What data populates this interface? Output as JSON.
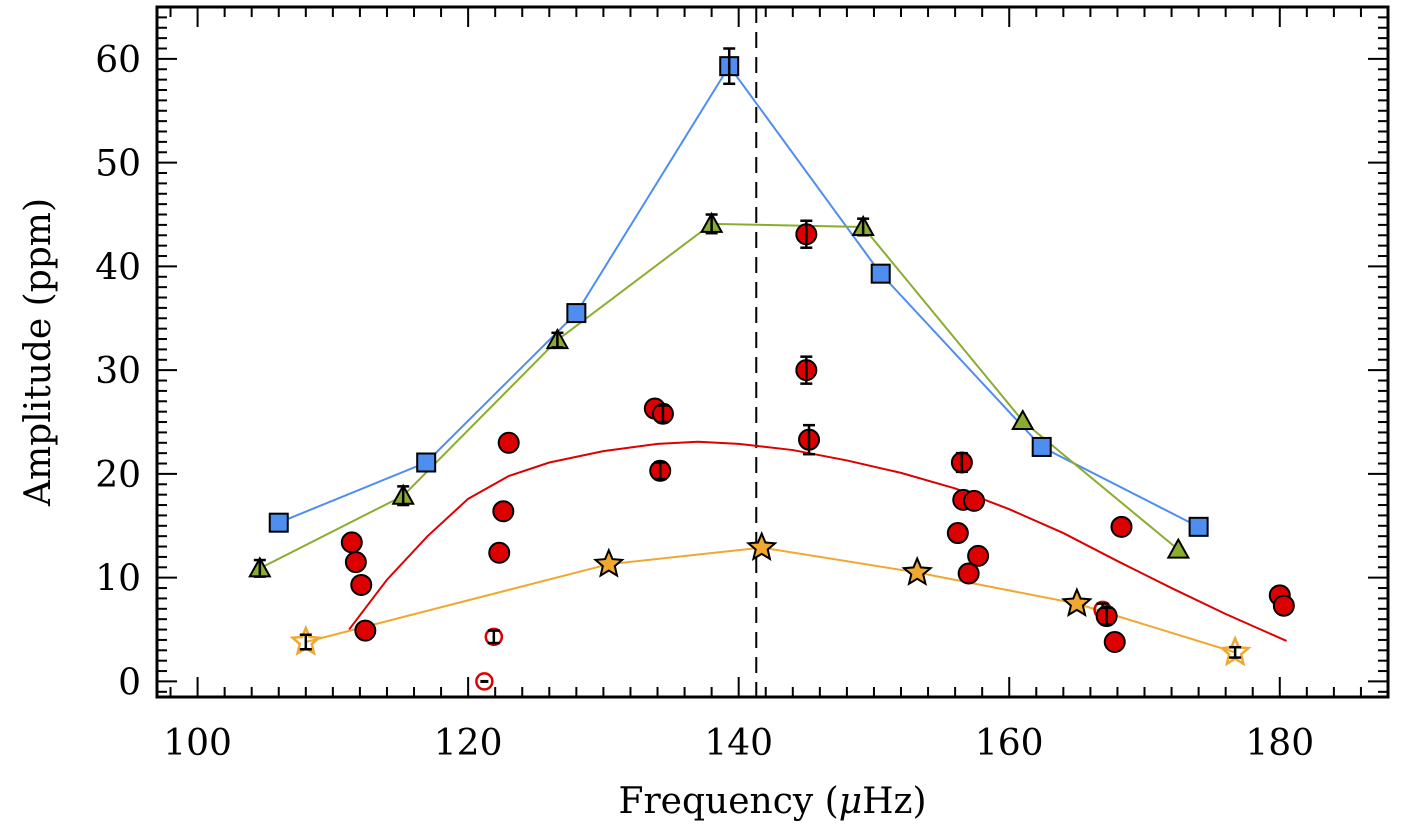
{
  "chart_data": {
    "type": "scatter",
    "xlabel_parts": [
      "Frequency (",
      "μ",
      "Hz)"
    ],
    "ylabel": "Amplitude (ppm)",
    "xlim": [
      97,
      188
    ],
    "ylim": [
      -1.5,
      65
    ],
    "xticks": [
      100,
      120,
      140,
      160,
      180
    ],
    "xtick_labels": [
      "100",
      "120",
      "140",
      "160",
      "180"
    ],
    "yticks": [
      0,
      10,
      20,
      30,
      40,
      50,
      60
    ],
    "ytick_labels": [
      "0",
      "10",
      "20",
      "30",
      "40",
      "50",
      "60"
    ],
    "vline_x": 141.3,
    "colors": {
      "blue": "#4d8ef0",
      "green": "#8aad2e",
      "red": "#dd0000",
      "orange": "#f0a830"
    },
    "series": [
      {
        "marker": "square",
        "color": "#4d8ef0",
        "line": true,
        "points": [
          {
            "x": 106.0,
            "y": 15.3
          },
          {
            "x": 116.9,
            "y": 21.1
          },
          {
            "x": 128.0,
            "y": 35.5
          },
          {
            "x": 139.3,
            "y": 59.3,
            "err": 1.7
          },
          {
            "x": 150.5,
            "y": 39.3
          },
          {
            "x": 162.4,
            "y": 22.6
          },
          {
            "x": 174.0,
            "y": 14.9
          }
        ]
      },
      {
        "marker": "triangle",
        "color": "#8aad2e",
        "line": true,
        "points": [
          {
            "x": 104.6,
            "y": 10.9,
            "err": 0.8
          },
          {
            "x": 115.2,
            "y": 17.9,
            "err": 0.9
          },
          {
            "x": 126.6,
            "y": 32.9,
            "err": 0.7
          },
          {
            "x": 138.0,
            "y": 44.1,
            "err": 0.9
          },
          {
            "x": 149.2,
            "y": 43.8,
            "err": 0.8
          },
          {
            "x": 161.0,
            "y": 25.1
          },
          {
            "x": 172.5,
            "y": 12.7
          }
        ]
      },
      {
        "marker": "star",
        "color": "#f0a830",
        "line": true,
        "points": [
          {
            "x": 108.0,
            "y": 3.8,
            "open": true,
            "err": 0.7
          },
          {
            "x": 130.4,
            "y": 11.3
          },
          {
            "x": 141.7,
            "y": 12.9
          },
          {
            "x": 153.2,
            "y": 10.5
          },
          {
            "x": 165.0,
            "y": 7.5
          },
          {
            "x": 176.7,
            "y": 2.8,
            "open": true,
            "err": 0.5
          }
        ]
      },
      {
        "marker": "circle",
        "color": "#dd0000",
        "line": false,
        "points": [
          {
            "x": 111.4,
            "y": 13.4
          },
          {
            "x": 111.7,
            "y": 11.5
          },
          {
            "x": 112.1,
            "y": 9.3
          },
          {
            "x": 112.4,
            "y": 4.9
          },
          {
            "x": 121.9,
            "y": 4.3,
            "open": true,
            "err": 0.6
          },
          {
            "x": 121.2,
            "y": 0.0,
            "open": true
          },
          {
            "x": 122.3,
            "y": 12.4
          },
          {
            "x": 122.6,
            "y": 16.4
          },
          {
            "x": 123.0,
            "y": 23.0
          },
          {
            "x": 133.8,
            "y": 26.3
          },
          {
            "x": 134.2,
            "y": 20.3,
            "err": 0.8
          },
          {
            "x": 134.4,
            "y": 25.8,
            "err": 0.8
          },
          {
            "x": 145.0,
            "y": 43.1,
            "err": 1.3
          },
          {
            "x": 145.0,
            "y": 30.0,
            "err": 1.3
          },
          {
            "x": 145.2,
            "y": 23.3,
            "err": 1.4
          },
          {
            "x": 156.2,
            "y": 14.3
          },
          {
            "x": 156.5,
            "y": 21.1,
            "err": 0.9
          },
          {
            "x": 156.6,
            "y": 17.5
          },
          {
            "x": 157.0,
            "y": 10.4
          },
          {
            "x": 157.4,
            "y": 17.4
          },
          {
            "x": 157.7,
            "y": 12.1
          },
          {
            "x": 166.9,
            "y": 6.9,
            "open": true,
            "err": 0.6
          },
          {
            "x": 167.2,
            "y": 6.3,
            "err": 0.8
          },
          {
            "x": 167.8,
            "y": 3.8
          },
          {
            "x": 168.3,
            "y": 14.9
          },
          {
            "x": 180.0,
            "y": 8.3
          },
          {
            "x": 180.3,
            "y": 7.3
          }
        ]
      }
    ],
    "fit_curve": {
      "color": "#dd0000",
      "points": [
        [
          111.2,
          5.0
        ],
        [
          114,
          9.8
        ],
        [
          117,
          14.0
        ],
        [
          120,
          17.6
        ],
        [
          123,
          19.8
        ],
        [
          126,
          21.1
        ],
        [
          130,
          22.2
        ],
        [
          134,
          22.9
        ],
        [
          137,
          23.1
        ],
        [
          140,
          22.9
        ],
        [
          144,
          22.3
        ],
        [
          148,
          21.3
        ],
        [
          152,
          20.1
        ],
        [
          156,
          18.6
        ],
        [
          160,
          16.6
        ],
        [
          164,
          14.3
        ],
        [
          168,
          11.6
        ],
        [
          172,
          9.0
        ],
        [
          176,
          6.5
        ],
        [
          180.5,
          3.9
        ]
      ]
    }
  }
}
